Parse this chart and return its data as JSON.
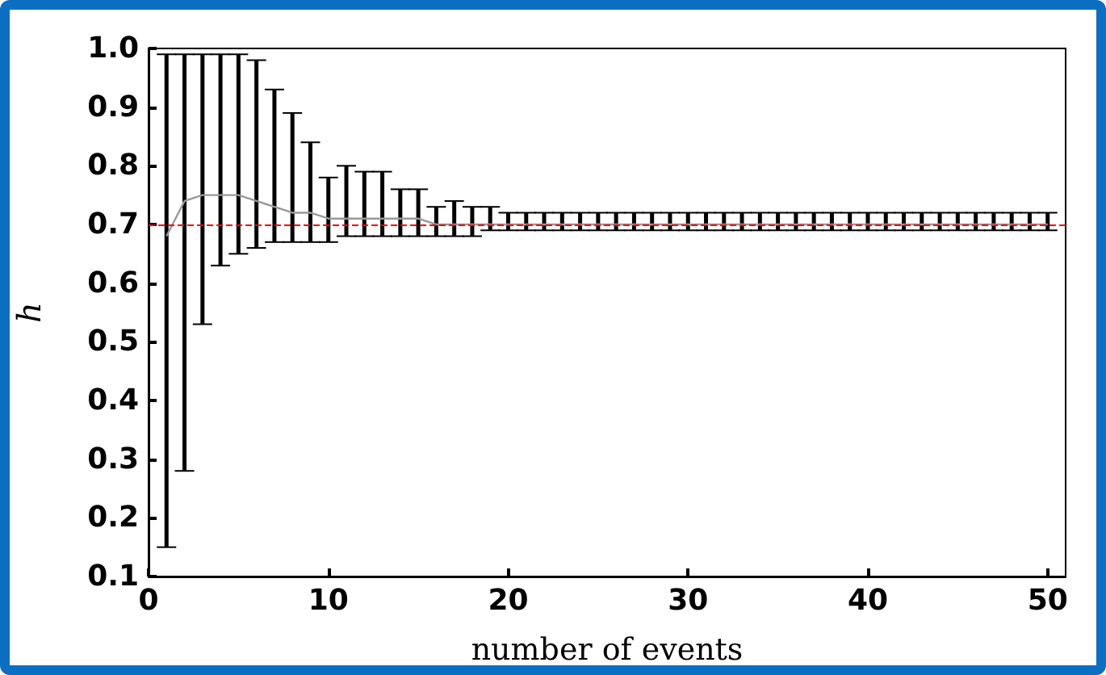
{
  "chart_data": {
    "type": "line",
    "xlabel": "number of events",
    "ylabel": "h",
    "x": [
      1,
      2,
      3,
      4,
      5,
      6,
      7,
      8,
      9,
      10,
      11,
      12,
      13,
      14,
      15,
      16,
      17,
      18,
      19,
      20,
      21,
      22,
      23,
      24,
      25,
      26,
      27,
      28,
      29,
      30,
      31,
      32,
      33,
      34,
      35,
      36,
      37,
      38,
      39,
      40,
      41,
      42,
      43,
      44,
      45,
      46,
      47,
      48,
      49,
      50
    ],
    "series": [
      {
        "color": "#999999",
        "values": [
          0.68,
          0.74,
          0.75,
          0.75,
          0.75,
          0.74,
          0.73,
          0.72,
          0.72,
          0.71,
          0.71,
          0.71,
          0.71,
          0.71,
          0.71,
          0.7,
          0.7,
          0.7,
          0.7,
          0.7,
          0.7,
          0.7,
          0.7,
          0.7,
          0.7,
          0.7,
          0.7,
          0.7,
          0.7,
          0.7,
          0.7,
          0.7,
          0.7,
          0.7,
          0.7,
          0.7,
          0.7,
          0.7,
          0.7,
          0.7,
          0.7,
          0.7,
          0.7,
          0.7,
          0.7,
          0.7,
          0.7,
          0.7,
          0.7,
          0.7
        ],
        "errors": [
          [
            0.15,
            0.99
          ],
          [
            0.28,
            0.99
          ],
          [
            0.53,
            0.99
          ],
          [
            0.63,
            0.99
          ],
          [
            0.65,
            0.99
          ],
          [
            0.66,
            0.98
          ],
          [
            0.67,
            0.93
          ],
          [
            0.67,
            0.89
          ],
          [
            0.67,
            0.84
          ],
          [
            0.67,
            0.78
          ],
          [
            0.68,
            0.8
          ],
          [
            0.68,
            0.79
          ],
          [
            0.68,
            0.79
          ],
          [
            0.68,
            0.76
          ],
          [
            0.68,
            0.76
          ],
          [
            0.68,
            0.73
          ],
          [
            0.68,
            0.74
          ],
          [
            0.68,
            0.73
          ],
          [
            0.69,
            0.73
          ],
          [
            0.69,
            0.72
          ],
          [
            0.69,
            0.72
          ],
          [
            0.69,
            0.72
          ],
          [
            0.69,
            0.72
          ],
          [
            0.69,
            0.72
          ],
          [
            0.69,
            0.72
          ],
          [
            0.69,
            0.72
          ],
          [
            0.69,
            0.72
          ],
          [
            0.69,
            0.72
          ],
          [
            0.69,
            0.72
          ],
          [
            0.69,
            0.72
          ],
          [
            0.69,
            0.72
          ],
          [
            0.69,
            0.72
          ],
          [
            0.69,
            0.72
          ],
          [
            0.69,
            0.72
          ],
          [
            0.69,
            0.72
          ],
          [
            0.69,
            0.72
          ],
          [
            0.69,
            0.72
          ],
          [
            0.69,
            0.72
          ],
          [
            0.69,
            0.72
          ],
          [
            0.69,
            0.72
          ],
          [
            0.69,
            0.72
          ],
          [
            0.69,
            0.72
          ],
          [
            0.69,
            0.72
          ],
          [
            0.69,
            0.72
          ],
          [
            0.69,
            0.72
          ],
          [
            0.69,
            0.72
          ],
          [
            0.69,
            0.72
          ],
          [
            0.69,
            0.72
          ],
          [
            0.69,
            0.72
          ],
          [
            0.69,
            0.72
          ]
        ]
      }
    ],
    "xlim": [
      0,
      51
    ],
    "xticks": [
      0,
      10,
      20,
      30,
      40,
      50
    ],
    "ylim": [
      0.1,
      1.0
    ],
    "yticks": [
      0.1,
      0.2,
      0.3,
      0.4,
      0.5,
      0.6,
      0.7,
      0.8,
      0.9,
      {
        "value": 1,
        "label": "1.0"
      }
    ],
    "ref_lines": [
      {
        "axis": "y",
        "value": 0.7,
        "color": "#ff0000",
        "line_style": "dashed"
      }
    ],
    "grid": false,
    "marker": "none",
    "line_style": "solid"
  }
}
